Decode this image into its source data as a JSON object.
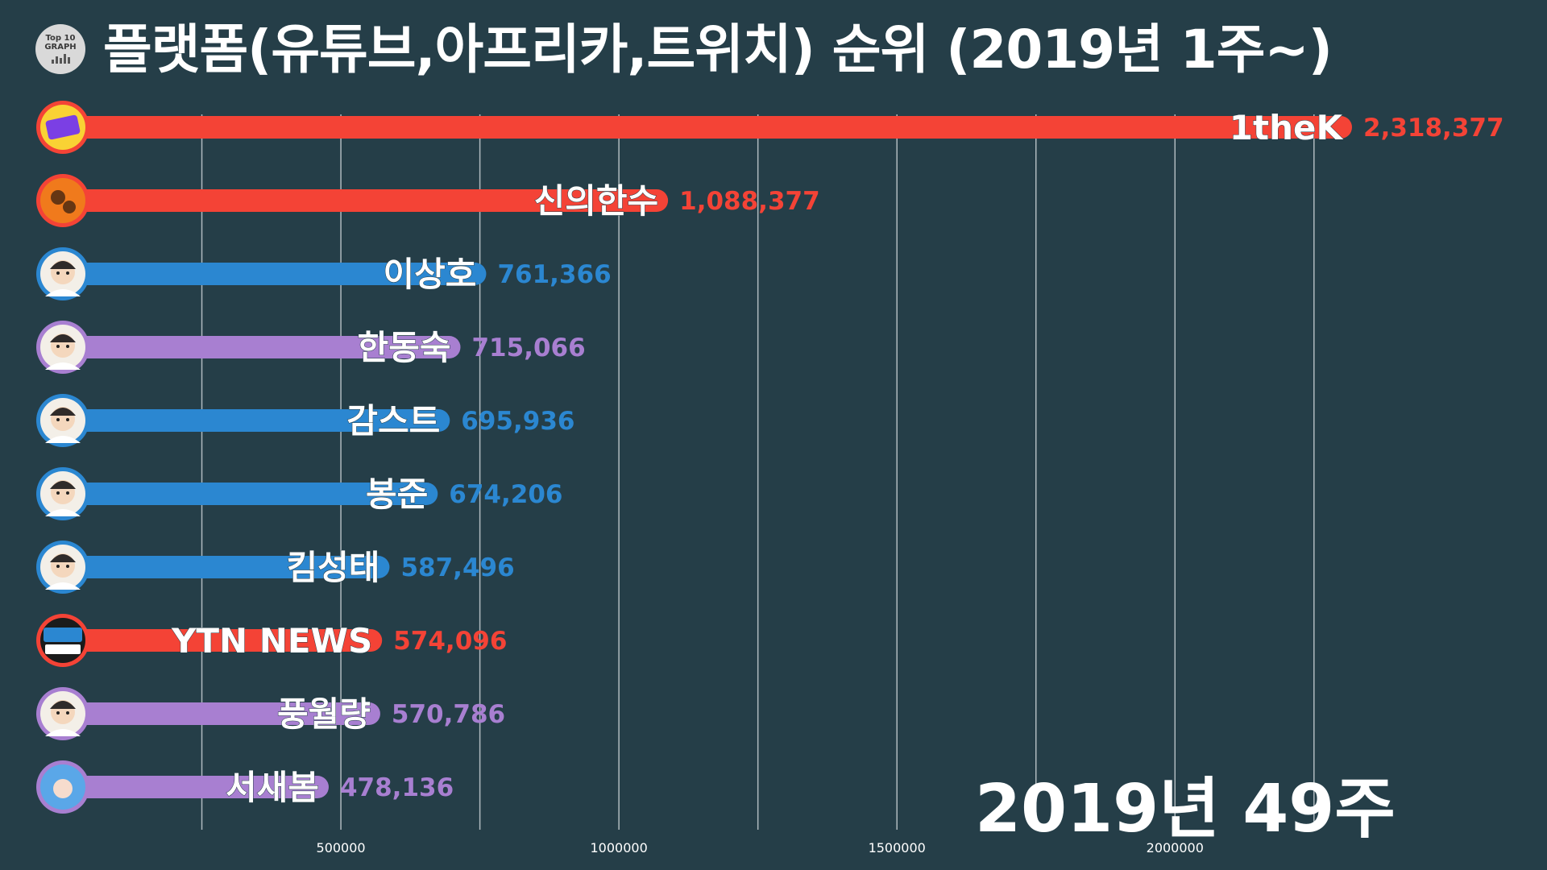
{
  "logo": {
    "line1": "Top 10",
    "line2": "GRAPH"
  },
  "title": "플랫폼(유튜브,아프리카,트위치) 순위  (2019년 1주~)",
  "period": "2019년 49주",
  "colors": {
    "youtube": "#f44336",
    "afreeca": "#2b87d1",
    "twitch": "#a87fd1",
    "background": "#253e48",
    "grid": "#c8d0d4"
  },
  "chart_data": {
    "type": "bar",
    "orientation": "horizontal",
    "xlim": [
      0,
      2318377
    ],
    "x_ticks": [
      500000,
      1000000,
      1500000,
      2000000
    ],
    "x_tick_labels": [
      "500000",
      "1000000",
      "1500000",
      "2000000"
    ],
    "grid": true,
    "categories": [
      "1theK",
      "신의한수",
      "이상호",
      "한동숙",
      "감스트",
      "봉준",
      "킴성태",
      "YTN NEWS",
      "풍월량",
      "서새봄"
    ],
    "values": [
      2318377,
      1088377,
      761366,
      715066,
      695936,
      674206,
      587496,
      574096,
      570786,
      478136
    ],
    "value_labels": [
      "2,318,377",
      "1,088,377",
      "761,366",
      "715,066",
      "695,936",
      "674,206",
      "587,496",
      "574,096",
      "570,786",
      "478,136"
    ],
    "platforms": [
      "youtube",
      "youtube",
      "afreeca",
      "twitch",
      "afreeca",
      "afreeca",
      "afreeca",
      "youtube",
      "twitch",
      "twitch"
    ],
    "avatar_icons": [
      "1thek-logo-icon",
      "shin-hansu-logo-icon",
      "lee-sangho-avatar-icon",
      "han-dongsuk-avatar-icon",
      "gamst-avatar-icon",
      "bongjun-avatar-icon",
      "kimsungtae-avatar-icon",
      "ytn-news-logo-icon",
      "pungwolryang-avatar-icon",
      "seosaebom-avatar-icon"
    ]
  }
}
